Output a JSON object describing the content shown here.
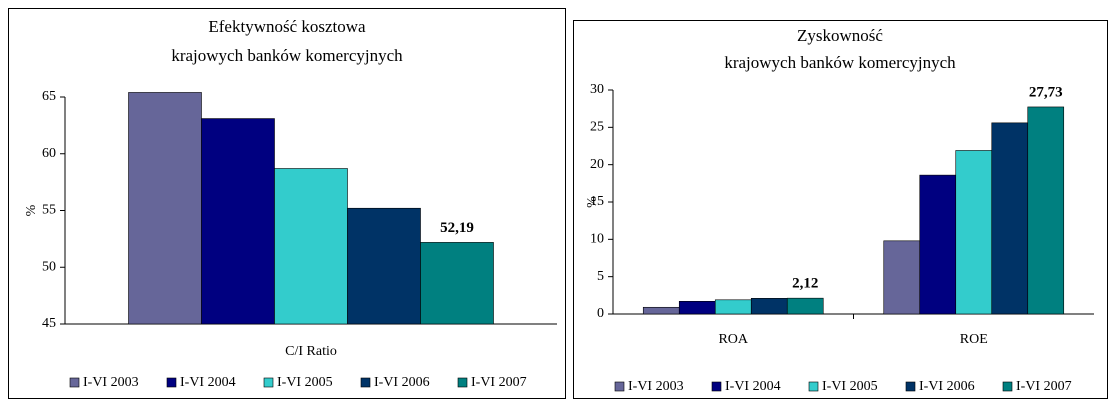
{
  "chart_data": [
    {
      "type": "bar",
      "title": [
        "Efektywność kosztowa",
        "krajowych banków komercyjnych"
      ],
      "y_label": "%",
      "categories": [
        "C/I Ratio"
      ],
      "ylim": [
        45,
        65
      ],
      "yticks": [
        45,
        50,
        55,
        60,
        65
      ],
      "legend": "bottom",
      "series": [
        {
          "name": "I-VI 2003",
          "color": "#666699",
          "values": [
            65.4
          ]
        },
        {
          "name": "I-VI 2004",
          "color": "#000080",
          "values": [
            63.1
          ]
        },
        {
          "name": "I-VI 2005",
          "color": "#33cccc",
          "values": [
            58.7
          ]
        },
        {
          "name": "I-VI 2006",
          "color": "#003366",
          "values": [
            55.2
          ]
        },
        {
          "name": "I-VI 2007",
          "color": "#008080",
          "values": [
            52.19
          ],
          "value_labels": [
            "52,19"
          ]
        }
      ]
    },
    {
      "type": "bar",
      "title": [
        "Zyskowność",
        "krajowych banków komercyjnych"
      ],
      "y_label": "%",
      "categories": [
        "ROA",
        "ROE"
      ],
      "ylim": [
        0,
        30
      ],
      "yticks": [
        0,
        5,
        10,
        15,
        20,
        25,
        30
      ],
      "legend": "bottom",
      "series": [
        {
          "name": "I-VI 2003",
          "color": "#666699",
          "values": [
            0.9,
            9.8
          ]
        },
        {
          "name": "I-VI 2004",
          "color": "#000080",
          "values": [
            1.7,
            18.6
          ]
        },
        {
          "name": "I-VI 2005",
          "color": "#33cccc",
          "values": [
            1.9,
            21.9
          ]
        },
        {
          "name": "I-VI 2006",
          "color": "#003366",
          "values": [
            2.1,
            25.6
          ]
        },
        {
          "name": "I-VI 2007",
          "color": "#008080",
          "values": [
            2.12,
            27.73
          ],
          "value_labels": [
            "2,12",
            "27,73"
          ]
        }
      ]
    }
  ]
}
